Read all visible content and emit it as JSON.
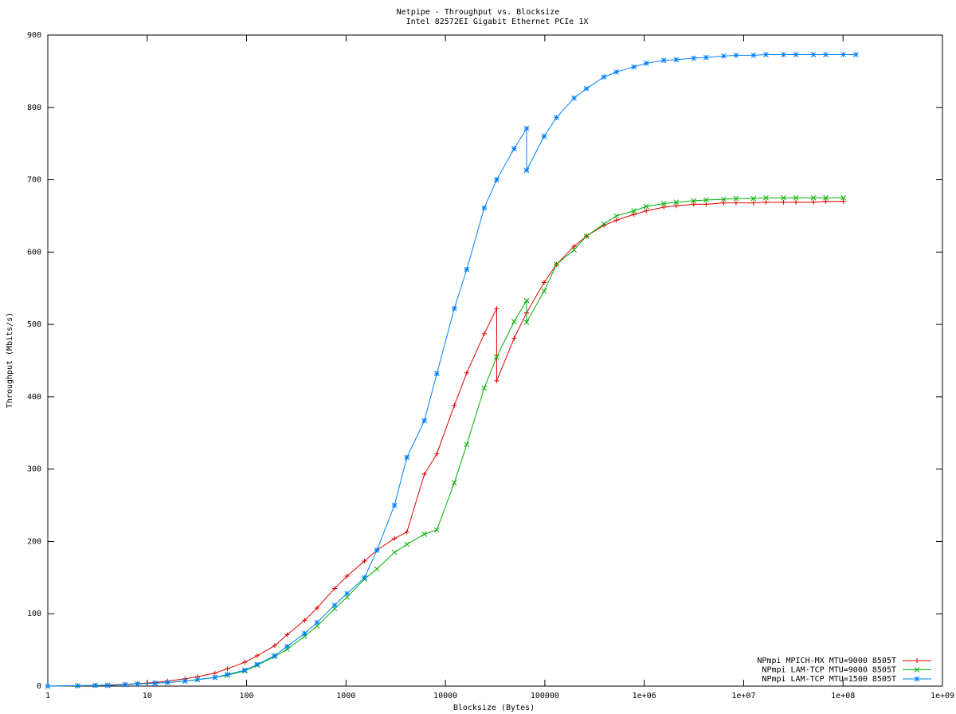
{
  "chart_data": {
    "type": "line",
    "title": "Netpipe - Throughput vs. Blocksize",
    "subtitle": "Intel 82572EI Gigabit Ethernet PCIe 1X",
    "x_label": "Blocksize (Bytes)",
    "y_label": "Throughput (Mbits/s)",
    "x_scale": "log",
    "legend": "bottom-right",
    "x": [
      1,
      2,
      3,
      4,
      6,
      8,
      12,
      16,
      24,
      32,
      48,
      64,
      96,
      128,
      192,
      256,
      384,
      512,
      768,
      1024,
      1536,
      2048,
      3072,
      4096,
      6144,
      8192,
      12288,
      16384,
      24576,
      32768,
      32771,
      49152,
      65536,
      65539,
      98304,
      131072,
      196608,
      262144,
      393216,
      524288,
      786432,
      1048576,
      1572864,
      2097152,
      3145728,
      4194304,
      6291456,
      8388608,
      12582912,
      16777216,
      25165824,
      33554432,
      50331648,
      67108864,
      100663296,
      134217728
    ],
    "series": [
      {
        "name": "NPmpi MPICH-MX MTU=9000 8505T",
        "color": "#e00000",
        "marker": "plus",
        "values": [
          0,
          0.5,
          1,
          1.5,
          2.5,
          3.5,
          5,
          7,
          10,
          13,
          18,
          24,
          33,
          42,
          56,
          71,
          91,
          108,
          135,
          152,
          173,
          188,
          204,
          213,
          293,
          321,
          388,
          433,
          487,
          522,
          422,
          481,
          516,
          516,
          558,
          583,
          608,
          622,
          637,
          644,
          652,
          657,
          662,
          664,
          666,
          666,
          668,
          668,
          668,
          669,
          669,
          669,
          669,
          670,
          670,
          null
        ]
      },
      {
        "name": "NPmpi LAM-TCP MTU=9000 8505T",
        "color": "#00b000",
        "marker": "cross",
        "values": [
          0,
          0.5,
          1,
          1,
          2,
          3,
          4,
          5,
          7,
          9,
          12,
          15,
          21,
          29,
          41,
          51,
          69,
          83,
          107,
          123,
          148,
          162,
          185,
          196,
          210,
          216,
          281,
          334,
          412,
          455,
          455,
          504,
          533,
          503,
          546,
          583,
          603,
          622,
          639,
          650,
          657,
          663,
          667,
          669,
          671,
          672,
          673,
          674,
          674,
          675,
          675,
          675,
          675,
          675,
          675,
          null
        ]
      },
      {
        "name": "NPmpi LAM-TCP MTU=1500 8505T",
        "color": "#0080ff",
        "marker": "star",
        "values": [
          0,
          0.5,
          1,
          1,
          2,
          3,
          4,
          5,
          7,
          9,
          12,
          16,
          22,
          30,
          42,
          55,
          73,
          88,
          112,
          128,
          150,
          188,
          250,
          316,
          367,
          432,
          522,
          576,
          661,
          700,
          700,
          743,
          771,
          713,
          760,
          786,
          813,
          826,
          842,
          849,
          856,
          861,
          865,
          866,
          868,
          869,
          871,
          872,
          872,
          873,
          873,
          873,
          873,
          873,
          873,
          873
        ]
      }
    ],
    "xlim": [
      1,
      1000000000
    ],
    "xticks": [
      1,
      10,
      100,
      1000,
      10000,
      100000,
      {
        "value": 1000000,
        "label": "1e+06"
      },
      {
        "value": 10000000,
        "label": "1e+07"
      },
      {
        "value": 100000000,
        "label": "1e+08"
      },
      {
        "value": 1000000000,
        "label": "1e+09"
      }
    ],
    "ylim": [
      0,
      900
    ],
    "yticks": [
      0,
      100,
      200,
      300,
      400,
      500,
      600,
      700,
      800,
      900
    ]
  }
}
